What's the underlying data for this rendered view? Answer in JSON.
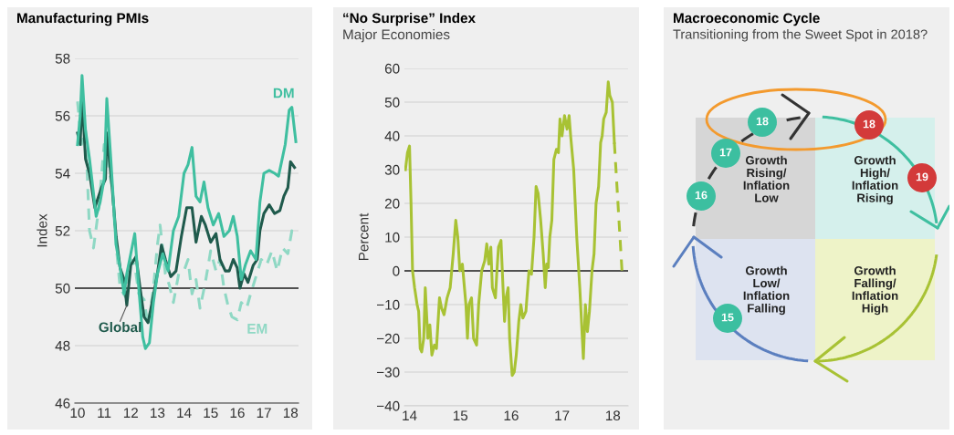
{
  "chart_data": [
    {
      "type": "line",
      "title": "Manufacturing PMIs",
      "ylabel": "Index",
      "xlim": [
        2009.9,
        2018.3
      ],
      "ylim": [
        46,
        58
      ],
      "xticks": [
        {
          "value": 2010,
          "label": "10"
        },
        {
          "value": 2011,
          "label": "11"
        },
        {
          "value": 2012,
          "label": "12"
        },
        {
          "value": 2013,
          "label": "13"
        },
        {
          "value": 2014,
          "label": "14"
        },
        {
          "value": 2015,
          "label": "15"
        },
        {
          "value": 2016,
          "label": "16"
        },
        {
          "value": 2017,
          "label": "17"
        },
        {
          "value": 2018,
          "label": "18"
        }
      ],
      "yticks": [
        46,
        48,
        50,
        52,
        54,
        56,
        58
      ],
      "grid": "y",
      "legend": false,
      "marker": "none",
      "ref_lines": [
        {
          "axis": "y",
          "value": 50,
          "color": "#222222"
        }
      ],
      "series": [
        {
          "name": "DM",
          "color": "#3fbfa0",
          "line_style": "solid",
          "x": [
            2010.0,
            2010.1,
            2010.17,
            2010.3,
            2010.45,
            2010.7,
            2010.85,
            2011.0,
            2011.1,
            2011.25,
            2011.45,
            2011.6,
            2011.75,
            2011.85,
            2012.0,
            2012.15,
            2012.3,
            2012.45,
            2012.55,
            2012.7,
            2012.85,
            2013.0,
            2013.2,
            2013.4,
            2013.6,
            2013.8,
            2014.0,
            2014.15,
            2014.3,
            2014.45,
            2014.6,
            2014.75,
            2014.9,
            2015.1,
            2015.3,
            2015.5,
            2015.7,
            2015.85,
            2016.0,
            2016.15,
            2016.3,
            2016.5,
            2016.7,
            2016.85,
            2017.0,
            2017.2,
            2017.4,
            2017.55,
            2017.8,
            2017.95,
            2018.05,
            2018.2
          ],
          "values": [
            55.0,
            56.0,
            57.4,
            55.5,
            54.5,
            52.5,
            53.0,
            53.8,
            56.6,
            54.5,
            51.5,
            50.7,
            49.8,
            50.5,
            51.2,
            51.9,
            50.0,
            48.3,
            47.9,
            48.1,
            49.5,
            50.5,
            51.2,
            50.6,
            52.0,
            52.5,
            54.0,
            54.3,
            54.9,
            53.2,
            53.0,
            53.7,
            52.8,
            52.2,
            52.6,
            51.8,
            52.0,
            52.5,
            51.8,
            50.3,
            50.8,
            51.3,
            51.0,
            53.0,
            54.0,
            54.1,
            54.0,
            53.9,
            55.0,
            56.2,
            56.3,
            55.1
          ]
        },
        {
          "name": "Global",
          "color": "#1f5a4c",
          "line_style": "solid",
          "x": [
            2010.0,
            2010.1,
            2010.17,
            2010.3,
            2010.45,
            2010.65,
            2010.9,
            2011.05,
            2011.1,
            2011.3,
            2011.45,
            2011.6,
            2011.75,
            2011.85,
            2012.0,
            2012.2,
            2012.35,
            2012.5,
            2012.65,
            2012.8,
            2013.0,
            2013.15,
            2013.3,
            2013.5,
            2013.7,
            2013.9,
            2014.1,
            2014.3,
            2014.45,
            2014.65,
            2014.8,
            2015.0,
            2015.2,
            2015.35,
            2015.55,
            2015.7,
            2015.85,
            2016.0,
            2016.1,
            2016.25,
            2016.4,
            2016.6,
            2016.75,
            2016.85,
            2017.0,
            2017.2,
            2017.4,
            2017.6,
            2017.75,
            2017.9,
            2018.0,
            2018.15
          ],
          "values": [
            55.4,
            55.0,
            56.7,
            54.5,
            54.0,
            52.8,
            53.5,
            53.8,
            55.4,
            53.5,
            51.8,
            50.7,
            50.3,
            49.4,
            50.8,
            51.1,
            50.0,
            49.0,
            48.8,
            49.5,
            50.5,
            51.5,
            51.0,
            50.4,
            50.6,
            51.8,
            52.8,
            52.8,
            51.6,
            52.5,
            52.2,
            51.6,
            51.9,
            51.0,
            50.6,
            50.6,
            51.0,
            50.7,
            50.0,
            50.5,
            50.2,
            50.8,
            51.0,
            52.0,
            52.6,
            52.9,
            52.6,
            52.7,
            53.2,
            53.5,
            54.4,
            54.2
          ]
        },
        {
          "name": "EM",
          "color": "#8fd8c4",
          "line_style": "dashed",
          "x": [
            2010.0,
            2010.15,
            2010.3,
            2010.45,
            2010.6,
            2010.8,
            2011.0,
            2011.1,
            2011.3,
            2011.45,
            2011.6,
            2011.8,
            2012.0,
            2012.15,
            2012.3,
            2012.5,
            2012.65,
            2012.85,
            2013.0,
            2013.1,
            2013.3,
            2013.45,
            2013.6,
            2013.8,
            2014.0,
            2014.15,
            2014.3,
            2014.45,
            2014.6,
            2014.8,
            2015.0,
            2015.2,
            2015.35,
            2015.5,
            2015.65,
            2015.8,
            2016.0,
            2016.15,
            2016.35,
            2016.5,
            2016.7,
            2016.9,
            2017.1,
            2017.3,
            2017.5,
            2017.7,
            2017.9,
            2018.05,
            2018.15
          ],
          "values": [
            56.5,
            55.0,
            55.5,
            52.0,
            51.4,
            52.8,
            55.0,
            54.6,
            53.5,
            51.5,
            50.0,
            49.7,
            51.0,
            50.8,
            49.8,
            49.6,
            48.7,
            50.0,
            51.5,
            52.2,
            50.5,
            50.1,
            49.5,
            50.5,
            50.6,
            51.0,
            49.8,
            50.3,
            49.3,
            50.2,
            51.3,
            50.6,
            51.0,
            50.0,
            49.4,
            49.0,
            48.9,
            49.5,
            49.3,
            49.8,
            50.4,
            51.0,
            50.8,
            51.3,
            50.6,
            51.4,
            51.2,
            52.0,
            51.9
          ]
        }
      ]
    },
    {
      "type": "line",
      "title": "“No Surprise” Index",
      "subtitle": "Major Economies",
      "ylabel": "Percent",
      "xlim": [
        2013.9,
        2018.3
      ],
      "ylim": [
        -40,
        60
      ],
      "xticks": [
        {
          "value": 2014,
          "label": "14"
        },
        {
          "value": 2015,
          "label": "15"
        },
        {
          "value": 2016,
          "label": "16"
        },
        {
          "value": 2017,
          "label": "17"
        },
        {
          "value": 2018,
          "label": "18"
        }
      ],
      "yticks": [
        {
          "value": -40,
          "label": "−40"
        },
        {
          "value": -30,
          "label": "−30"
        },
        {
          "value": -20,
          "label": "−20"
        },
        {
          "value": -10,
          "label": "−10"
        },
        0,
        10,
        20,
        30,
        40,
        50,
        60
      ],
      "grid": "y",
      "legend": false,
      "marker": "none",
      "ref_lines": [
        {
          "axis": "y",
          "value": 0,
          "color": "#222222"
        }
      ],
      "series": [
        {
          "color": "#a8c234",
          "line_style": "solid",
          "x": [
            2013.92,
            2013.96,
            2014.0,
            2014.03,
            2014.06,
            2014.1,
            2014.15,
            2014.18,
            2014.21,
            2014.24,
            2014.28,
            2014.31,
            2014.36,
            2014.4,
            2014.44,
            2014.49,
            2014.53,
            2014.59,
            2014.63,
            2014.68,
            2014.74,
            2014.8,
            2014.86,
            2014.91,
            2014.95,
            2014.99,
            2015.04,
            2015.11,
            2015.14,
            2015.17,
            2015.22,
            2015.26,
            2015.32,
            2015.36,
            2015.42,
            2015.48,
            2015.52,
            2015.56,
            2015.6,
            2015.63,
            2015.69,
            2015.72,
            2015.75,
            2015.8,
            2015.84,
            2015.87,
            2015.9,
            2015.94,
            2015.97,
            2016.02,
            2016.06,
            2016.1,
            2016.15,
            2016.19,
            2016.23,
            2016.29,
            2016.35,
            2016.4,
            2016.45,
            2016.49,
            2016.53,
            2016.58,
            2016.63,
            2016.67,
            2016.7,
            2016.73,
            2016.76,
            2016.8,
            2016.84,
            2016.89,
            2016.93,
            2016.96,
            2017.0,
            2017.05,
            2017.1,
            2017.14,
            2017.17,
            2017.23,
            2017.29,
            2017.35,
            2017.4,
            2017.42,
            2017.46,
            2017.5,
            2017.54,
            2017.59,
            2017.63,
            2017.67,
            2017.72,
            2017.76,
            2017.79,
            2017.82,
            2017.87,
            2017.91,
            2017.94,
            2017.99,
            2018.03
          ],
          "values": [
            30,
            35,
            37,
            20,
            0,
            -5,
            -10,
            -12,
            -23,
            -24,
            -20,
            -5,
            -20,
            -16,
            -25,
            -22,
            -23,
            -8,
            -11,
            -13,
            -8,
            -5,
            5,
            15,
            10,
            0,
            2,
            -10,
            -20,
            -10,
            -8,
            -20,
            -22,
            -10,
            0,
            3,
            8,
            2,
            7,
            -5,
            -8,
            0,
            7,
            9,
            -5,
            -15,
            -8,
            -5,
            -20,
            -31,
            -30,
            -25,
            -15,
            -10,
            -14,
            -12,
            0,
            -1,
            10,
            25,
            23,
            15,
            5,
            -5,
            2,
            1,
            10,
            15,
            33,
            36,
            35,
            45,
            40,
            46,
            42,
            46,
            40,
            30,
            10,
            -5,
            -20,
            -26,
            -10,
            -18,
            -12,
            0,
            5,
            20,
            25,
            38,
            40,
            45,
            47,
            56,
            52,
            50,
            38
          ]
        },
        {
          "color": "#a8c234",
          "line_style": "dashed",
          "x": [
            2018.03,
            2018.18
          ],
          "values": [
            38,
            0
          ]
        }
      ]
    },
    {
      "type": "other",
      "title": "Macroeconomic Cycle",
      "subtitle": "Transitioning from the Sweet Spot in 2018?",
      "annotations": [
        "Growth\nRising/\nInflation\nLow",
        "Growth\nHigh/\nInflation\nRising",
        "Growth\nLow/\nInflation\nFalling",
        "Growth\nFalling/\nInflation\nHigh",
        "18",
        "17",
        "16",
        "15",
        "18",
        "19"
      ]
    }
  ]
}
